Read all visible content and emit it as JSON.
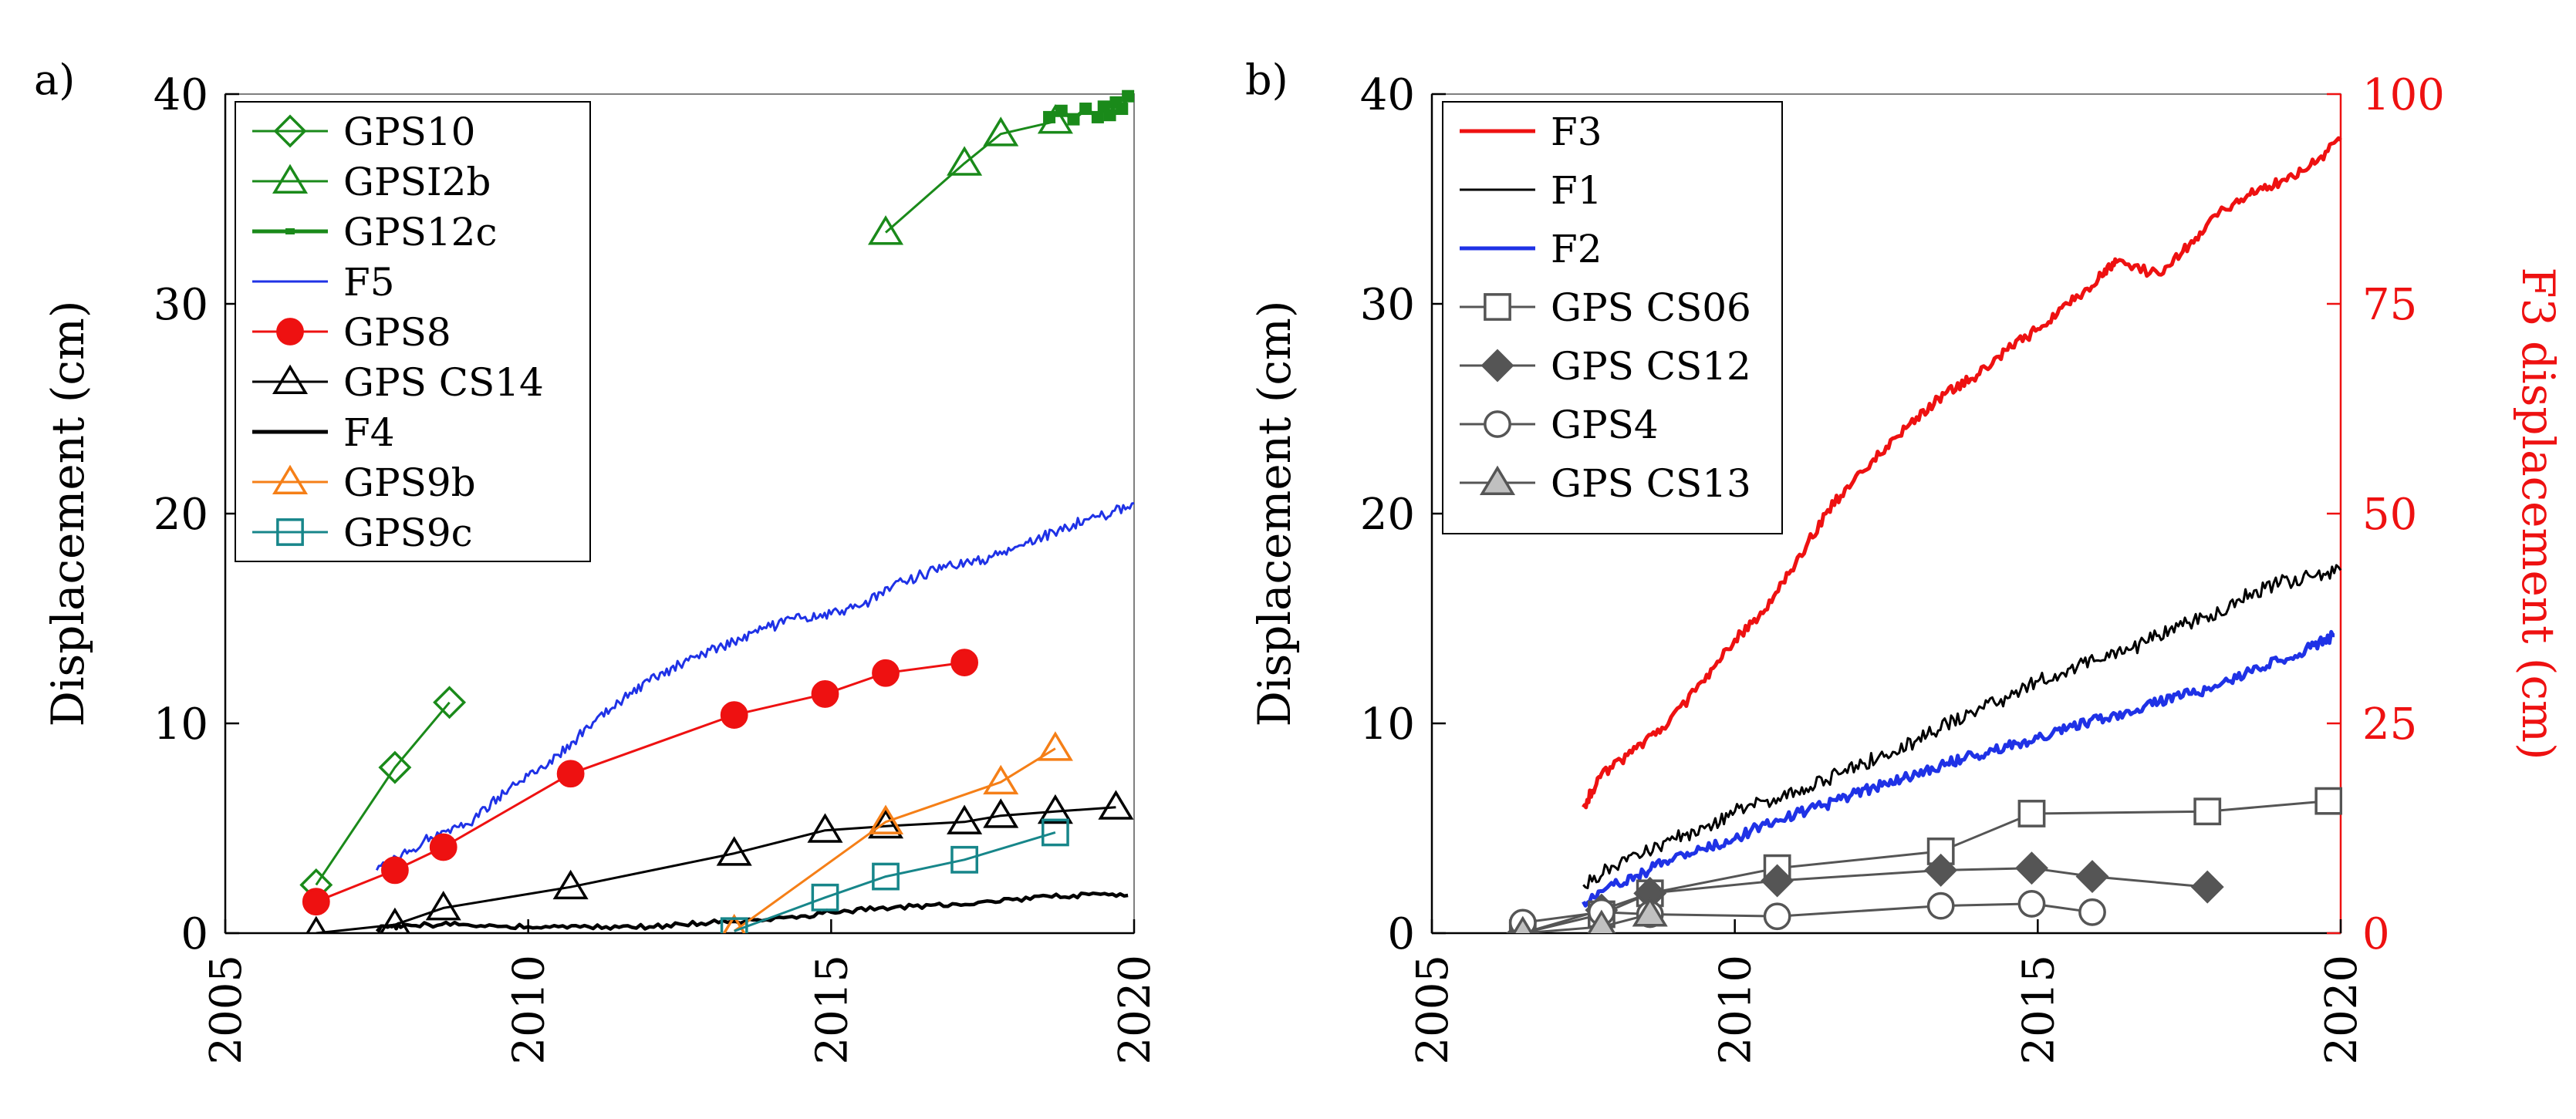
{
  "chart_data": [
    {
      "type": "line",
      "panel_label": "a)",
      "ylabel": "Displacement (cm)",
      "xlabel": "",
      "xlim": [
        2005,
        2020
      ],
      "ylim": [
        0,
        40
      ],
      "xticks": [
        "2005",
        "2010",
        "2015",
        "2020"
      ],
      "yticks": [
        "0",
        "10",
        "20",
        "30",
        "40"
      ],
      "grid": false,
      "legend": "top-left",
      "series": [
        {
          "name": "GPS10",
          "color": "#1a8a1a",
          "marker": "diamond",
          "fill": "none",
          "x": [
            2006.5,
            2007.8,
            2008.7
          ],
          "y": [
            2.3,
            7.9,
            11.0
          ]
        },
        {
          "name": "GPSI2b",
          "color": "#1a8a1a",
          "marker": "triangle",
          "fill": "none",
          "x": [
            2015.9,
            2017.2,
            2017.8,
            2018.7
          ],
          "y": [
            33.4,
            36.7,
            38.1,
            38.7
          ]
        },
        {
          "name": "GPS12c",
          "color": "#1a8a1a",
          "marker": "dash",
          "fill": "#1a8a1a",
          "x": [
            2018.6,
            2018.8,
            2019.0,
            2019.2,
            2019.4,
            2019.5,
            2019.6,
            2019.7,
            2019.8,
            2019.9
          ],
          "y": [
            38.9,
            39.2,
            38.8,
            39.3,
            38.9,
            39.4,
            39.0,
            39.6,
            39.3,
            39.9
          ]
        },
        {
          "name": "F5",
          "color": "#1f32e6",
          "marker": "none",
          "fill": "none",
          "noise": 0.25,
          "x": [
            2007.5,
            2008.0,
            2008.5,
            2009.0,
            2009.5,
            2010.0,
            2010.5,
            2011.0,
            2011.5,
            2012.0,
            2012.5,
            2013.0,
            2013.5,
            2014.0,
            2014.5,
            2015.0,
            2015.5,
            2016.0,
            2016.5,
            2017.0,
            2017.5,
            2018.0,
            2018.5,
            2019.0,
            2019.5,
            2020.0
          ],
          "y": [
            3.0,
            3.8,
            4.8,
            5.2,
            6.5,
            7.5,
            8.5,
            9.8,
            11.0,
            12.0,
            12.8,
            13.5,
            14.0,
            14.6,
            15.0,
            15.2,
            15.6,
            16.5,
            17.1,
            17.5,
            17.8,
            18.3,
            18.9,
            19.5,
            19.9,
            20.5
          ]
        },
        {
          "name": "GPS8",
          "color": "#ee1111",
          "marker": "circle",
          "fill": "#ee1111",
          "x": [
            2006.5,
            2007.8,
            2008.6,
            2010.7,
            2013.4,
            2014.9,
            2015.9,
            2017.2
          ],
          "y": [
            1.5,
            3.0,
            4.1,
            7.6,
            10.4,
            11.4,
            12.4,
            12.9
          ]
        },
        {
          "name": "GPS CS14",
          "color": "#000000",
          "marker": "triangle",
          "fill": "none",
          "x": [
            2006.5,
            2007.8,
            2008.6,
            2010.7,
            2013.4,
            2014.9,
            2015.9,
            2017.2,
            2017.8,
            2018.7,
            2019.7
          ],
          "y": [
            0.0,
            0.4,
            1.2,
            2.2,
            3.8,
            4.9,
            5.1,
            5.3,
            5.6,
            5.8,
            6.0
          ]
        },
        {
          "name": "F4",
          "color": "#000000",
          "marker": "none",
          "fill": "none",
          "noise": 0.12,
          "x": [
            2007.5,
            2008.0,
            2009.0,
            2010.0,
            2011.0,
            2012.0,
            2013.0,
            2014.0,
            2015.0,
            2016.0,
            2017.0,
            2018.0,
            2019.0,
            2019.9
          ],
          "y": [
            0.2,
            0.4,
            0.4,
            0.3,
            0.3,
            0.3,
            0.5,
            0.6,
            1.0,
            1.2,
            1.4,
            1.6,
            1.8,
            1.8
          ]
        },
        {
          "name": "GPS9b",
          "color": "#f57f17",
          "marker": "triangle",
          "fill": "none",
          "x": [
            2013.4,
            2015.9,
            2017.8,
            2018.7
          ],
          "y": [
            0.1,
            5.3,
            7.2,
            8.8
          ]
        },
        {
          "name": "GPS9c",
          "color": "#17868a",
          "marker": "square",
          "fill": "none",
          "x": [
            2013.4,
            2014.9,
            2015.9,
            2017.2,
            2018.7
          ],
          "y": [
            0.1,
            1.7,
            2.7,
            3.5,
            4.8
          ]
        }
      ]
    },
    {
      "type": "line",
      "panel_label": "b)",
      "ylabel": "Displacement (cm)",
      "ylabel_right": "F3 displacement (cm)",
      "xlabel": "",
      "xlim": [
        2005,
        2020
      ],
      "ylim": [
        0,
        40
      ],
      "ylim_right": [
        0,
        100
      ],
      "xticks": [
        "2005",
        "2010",
        "2015",
        "2020"
      ],
      "yticks": [
        "0",
        "10",
        "20",
        "30",
        "40"
      ],
      "yticks_right": [
        "0",
        "25",
        "50",
        "75",
        "100"
      ],
      "right_axis_color": "#ee1111",
      "grid": false,
      "legend": "top-left",
      "series": [
        {
          "name": "F3",
          "color": "#ee1111",
          "marker": "none",
          "fill": "none",
          "axis": "right",
          "noise": 0.6,
          "x": [
            2007.5,
            2007.8,
            2008.3,
            2008.8,
            2009.5,
            2010.0,
            2010.5,
            2011.0,
            2011.5,
            2012.0,
            2012.5,
            2013.0,
            2013.5,
            2014.0,
            2014.5,
            2015.0,
            2015.5,
            2016.0,
            2016.3,
            2017.0,
            2017.5,
            2018.0,
            2018.5,
            2019.0,
            2019.5,
            2020.0
          ],
          "y": [
            15,
            19,
            21.5,
            24.5,
            30,
            35,
            38.5,
            44,
            50,
            54.5,
            58,
            61.5,
            64.5,
            66.5,
            69.5,
            72,
            75,
            78,
            80,
            78.5,
            82,
            86,
            88,
            89.5,
            91.5,
            94.5
          ]
        },
        {
          "name": "F1",
          "color": "#000000",
          "marker": "none",
          "fill": "none",
          "noise": 0.35,
          "x": [
            2007.5,
            2008.0,
            2008.5,
            2009.0,
            2009.5,
            2010.0,
            2010.5,
            2011.0,
            2011.5,
            2012.0,
            2012.5,
            2013.0,
            2013.5,
            2014.0,
            2014.5,
            2015.0,
            2015.5,
            2016.0,
            2016.5,
            2017.0,
            2017.5,
            2018.0,
            2018.5,
            2019.0,
            2019.5,
            2020.0
          ],
          "y": [
            2.3,
            3.2,
            3.8,
            4.5,
            5.0,
            5.8,
            6.3,
            6.8,
            7.3,
            8.0,
            8.5,
            9.2,
            10.0,
            10.6,
            11.2,
            12.0,
            12.6,
            13.0,
            13.5,
            14.2,
            14.8,
            15.3,
            16.2,
            16.7,
            17.0,
            17.3
          ]
        },
        {
          "name": "F2",
          "color": "#1f32e6",
          "marker": "none",
          "fill": "none",
          "noise": 0.25,
          "x": [
            2007.5,
            2008.0,
            2008.5,
            2009.0,
            2009.5,
            2010.0,
            2010.5,
            2011.0,
            2011.5,
            2012.0,
            2012.5,
            2013.0,
            2013.5,
            2014.0,
            2014.5,
            2015.0,
            2015.5,
            2016.0,
            2016.5,
            2017.0,
            2017.5,
            2018.0,
            2018.5,
            2019.0,
            2019.5,
            2019.9
          ],
          "y": [
            1.5,
            2.3,
            2.9,
            3.6,
            4.0,
            4.5,
            5.2,
            5.7,
            6.1,
            6.7,
            7.1,
            7.6,
            8.1,
            8.5,
            8.9,
            9.3,
            9.8,
            10.2,
            10.6,
            11.0,
            11.4,
            11.8,
            12.5,
            13.0,
            13.6,
            14.2
          ]
        },
        {
          "name": "GPS CS06",
          "color": "#555555",
          "marker": "square",
          "fill": "#ffffff",
          "x": [
            2006.5,
            2007.8,
            2008.6,
            2010.7,
            2013.4,
            2014.9,
            2017.8,
            2019.8
          ],
          "y": [
            0.0,
            0.9,
            1.9,
            3.1,
            3.9,
            5.7,
            5.8,
            6.3
          ]
        },
        {
          "name": "GPS CS12",
          "color": "#555555",
          "marker": "diamond",
          "fill": "#555555",
          "x": [
            2006.5,
            2007.8,
            2008.6,
            2010.7,
            2013.4,
            2014.9,
            2015.9,
            2017.8
          ],
          "y": [
            0.0,
            1.1,
            1.9,
            2.5,
            3.0,
            3.1,
            2.7,
            2.2
          ]
        },
        {
          "name": "GPS4",
          "color": "#555555",
          "marker": "circle",
          "fill": "#ffffff",
          "x": [
            2006.5,
            2007.8,
            2008.6,
            2010.7,
            2013.4,
            2014.9,
            2015.9
          ],
          "y": [
            0.5,
            1.0,
            0.9,
            0.8,
            1.3,
            1.4,
            1.0
          ]
        },
        {
          "name": "GPS CS13",
          "color": "#555555",
          "marker": "triangle",
          "fill": "#c0c0c0",
          "x": [
            2006.5,
            2007.8,
            2008.6
          ],
          "y": [
            0.0,
            0.3,
            0.9
          ]
        }
      ]
    }
  ]
}
